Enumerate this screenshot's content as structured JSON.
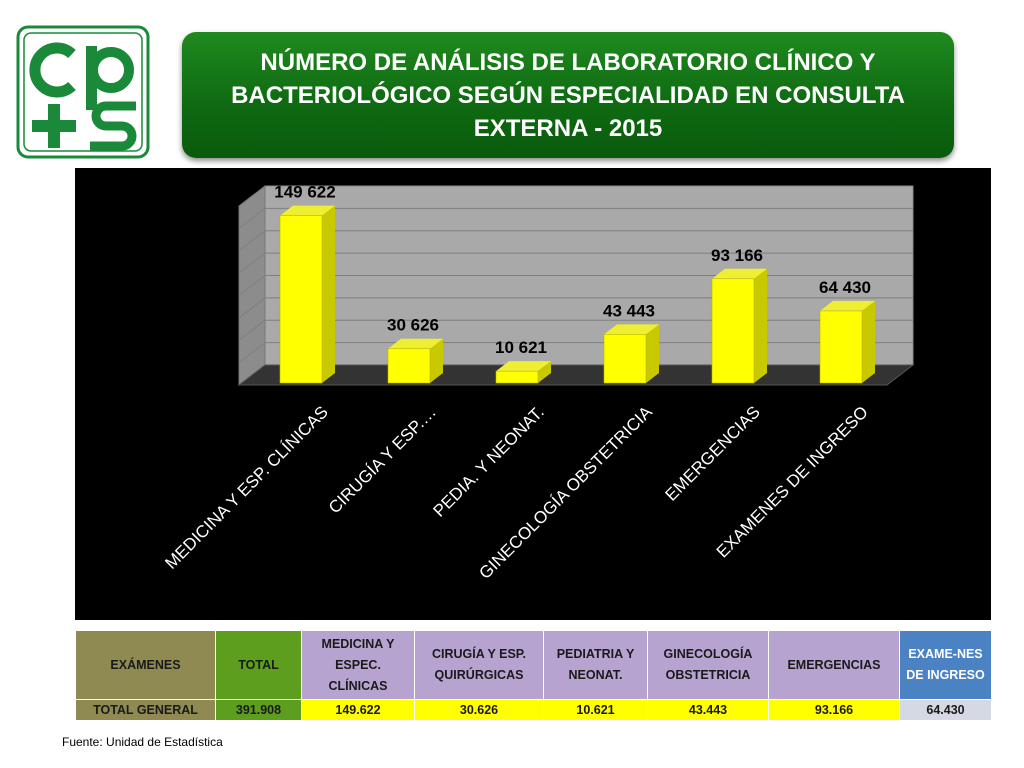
{
  "title": "NÚMERO DE ANÁLISIS DE LABORATORIO CLÍNICO Y BACTERIOLÓGICO SEGÚN ESPECIALIDAD EN CONSULTA EXTERNA - 2015",
  "colors": {
    "title_bg": "#0f6b12",
    "bar_front": "#ffff00",
    "bar_side": "#c9c900",
    "logo": "#1a8a3a"
  },
  "chart_data": {
    "type": "bar",
    "categories": [
      "MEDICINA Y ESP. CLÍNICAS",
      "CIRUGÍA Y ESP.…",
      "PEDIA. Y NEONAT.",
      "GINECOLOGÍA OBSTETRICIA",
      "EMERGENCIAS",
      "EXAMENES DE INGRESO"
    ],
    "values": [
      149622,
      30626,
      10621,
      43443,
      93166,
      64430
    ],
    "data_labels": [
      "149 622",
      "30 626",
      "10 621",
      "43 443",
      "93 166",
      "64 430"
    ],
    "ylim": [
      0,
      160000
    ],
    "grid": true
  },
  "table": {
    "headers": [
      "EXÁMENES",
      "TOTAL",
      "MEDICINA Y ESPEC. CLÍNICAS",
      "CIRUGÍA Y ESP. QUIRÚRGICAS",
      "PEDIATRIA Y NEONAT.",
      "GINECOLOGÍA OBSTETRICIA",
      "EMERGENCIAS",
      "EXAME-NES DE INGRESO"
    ],
    "row": [
      "TOTAL GENERAL",
      "391.908",
      "149.622",
      "30.626",
      "10.621",
      "43.443",
      "93.166",
      "64.430"
    ]
  },
  "source": "Fuente: Unidad de Estadística"
}
